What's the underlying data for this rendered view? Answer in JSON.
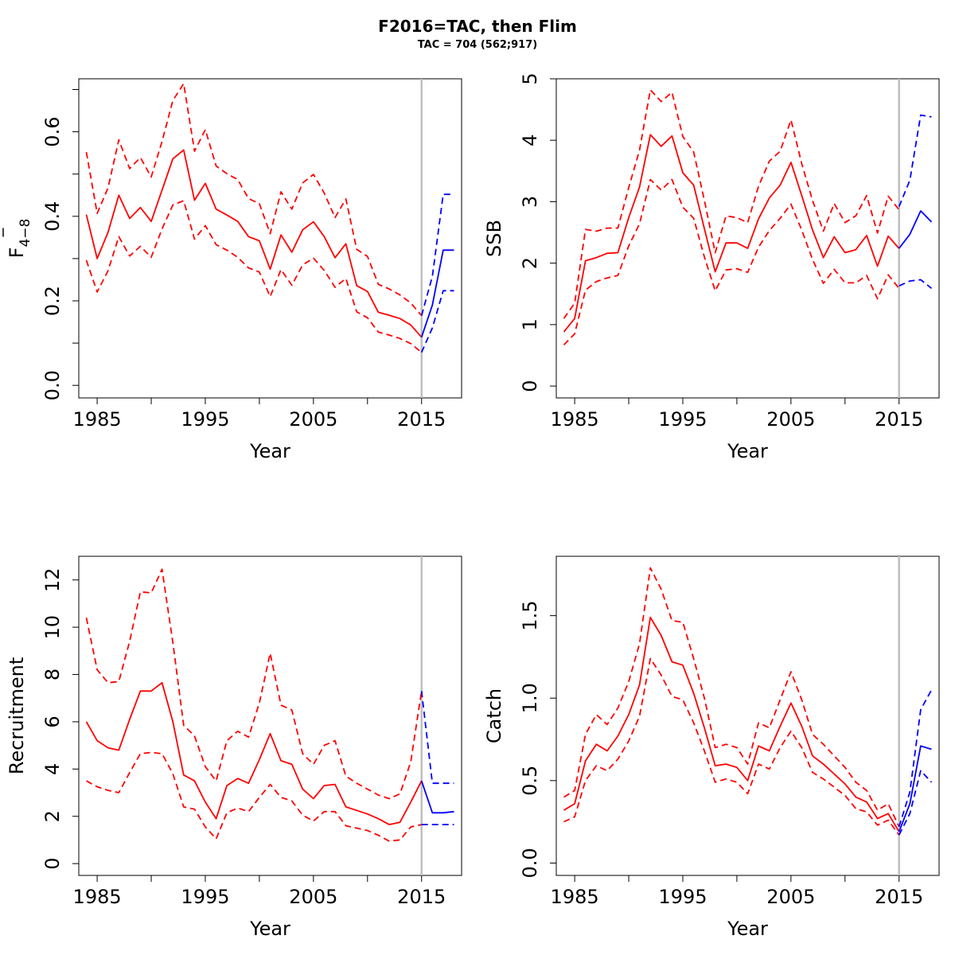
{
  "title": "F2016=TAC, then Flim",
  "subtitle": "TAC = 704 (562;917)",
  "colors": {
    "historic": "#ff0000",
    "forecast": "#0000ff",
    "divider": "#bebebe",
    "axis": "#000000"
  },
  "chart_data": [
    {
      "type": "line",
      "id": "fbar",
      "ylabel": "F",
      "ylabel_bar": "F",
      "ylabel_sub": "4−8",
      "xlabel": "Year",
      "xlim": [
        1983.3,
        2018.7
      ],
      "ylim": [
        -0.0297,
        0.7254
      ],
      "xticks": [
        1985,
        1995,
        2005,
        2015
      ],
      "xticks_minor": [
        1990,
        2000,
        2010
      ],
      "yticks": [
        0.0,
        0.2,
        0.4,
        0.6
      ],
      "yticks_minor": [
        0.1,
        0.3,
        0.5,
        0.7
      ],
      "divider_x": 2015,
      "historic": {
        "x": [
          1984,
          1985,
          1986,
          1987,
          1988,
          1989,
          1990,
          1991,
          1992,
          1993,
          1994,
          1995,
          1996,
          1997,
          1998,
          1999,
          2000,
          2001,
          2002,
          2003,
          2004,
          2005,
          2006,
          2007,
          2008,
          2009,
          2010,
          2011,
          2012,
          2013,
          2014,
          2015
        ],
        "mid": [
          0.404,
          0.3,
          0.362,
          0.45,
          0.395,
          0.421,
          0.388,
          0.462,
          0.536,
          0.557,
          0.438,
          0.478,
          0.417,
          0.403,
          0.388,
          0.352,
          0.342,
          0.275,
          0.356,
          0.315,
          0.368,
          0.387,
          0.352,
          0.302,
          0.335,
          0.236,
          0.222,
          0.173,
          0.166,
          0.158,
          0.143,
          0.114
        ],
        "upper": [
          0.552,
          0.407,
          0.467,
          0.581,
          0.513,
          0.539,
          0.493,
          0.577,
          0.674,
          0.714,
          0.554,
          0.605,
          0.519,
          0.501,
          0.487,
          0.442,
          0.43,
          0.359,
          0.458,
          0.417,
          0.479,
          0.499,
          0.455,
          0.397,
          0.441,
          0.322,
          0.305,
          0.239,
          0.228,
          0.214,
          0.195,
          0.165
        ],
        "lower": [
          0.296,
          0.221,
          0.271,
          0.352,
          0.306,
          0.329,
          0.303,
          0.37,
          0.427,
          0.437,
          0.346,
          0.378,
          0.333,
          0.32,
          0.303,
          0.278,
          0.268,
          0.21,
          0.274,
          0.237,
          0.285,
          0.301,
          0.272,
          0.232,
          0.253,
          0.174,
          0.16,
          0.126,
          0.119,
          0.111,
          0.099,
          0.078
        ]
      },
      "forecast": {
        "x": [
          2015,
          2016,
          2017,
          2018
        ],
        "mid": [
          0.114,
          0.19,
          0.32,
          0.32
        ],
        "upper": [
          0.165,
          0.258,
          0.452,
          0.452
        ],
        "lower": [
          0.078,
          0.136,
          0.224,
          0.224
        ]
      }
    },
    {
      "type": "line",
      "id": "ssb",
      "ylabel": "SSB",
      "xlabel": "Year",
      "xlim": [
        1983.3,
        2018.7
      ],
      "ylim": [
        -0.193,
        5.0
      ],
      "xticks": [
        1985,
        1995,
        2005,
        2015
      ],
      "xticks_minor": [
        1990,
        2000,
        2010
      ],
      "yticks": [
        0,
        1,
        2,
        3,
        4,
        5
      ],
      "yticks_minor": [],
      "divider_x": 2015,
      "historic": {
        "x": [
          1984,
          1985,
          1986,
          1987,
          1988,
          1989,
          1990,
          1991,
          1992,
          1993,
          1994,
          1995,
          1996,
          1997,
          1998,
          1999,
          2000,
          2001,
          2002,
          2003,
          2004,
          2005,
          2006,
          2007,
          2008,
          2009,
          2010,
          2011,
          2012,
          2013,
          2014,
          2015
        ],
        "mid": [
          0.88,
          1.1,
          2.04,
          2.09,
          2.16,
          2.17,
          2.74,
          3.24,
          4.09,
          3.9,
          4.07,
          3.47,
          3.27,
          2.56,
          1.86,
          2.33,
          2.33,
          2.24,
          2.72,
          3.06,
          3.27,
          3.64,
          3.1,
          2.54,
          2.09,
          2.43,
          2.17,
          2.22,
          2.45,
          1.95,
          2.44,
          2.24
        ],
        "upper": [
          1.1,
          1.35,
          2.55,
          2.52,
          2.57,
          2.57,
          3.23,
          3.84,
          4.82,
          4.63,
          4.78,
          4.06,
          3.81,
          3.02,
          2.17,
          2.77,
          2.74,
          2.66,
          3.25,
          3.66,
          3.82,
          4.33,
          3.62,
          3.02,
          2.52,
          2.97,
          2.66,
          2.77,
          3.1,
          2.49,
          3.09,
          2.87
        ],
        "lower": [
          0.67,
          0.85,
          1.56,
          1.7,
          1.76,
          1.8,
          2.28,
          2.64,
          3.36,
          3.19,
          3.36,
          2.91,
          2.73,
          2.1,
          1.55,
          1.89,
          1.91,
          1.85,
          2.26,
          2.53,
          2.73,
          2.96,
          2.54,
          2.06,
          1.67,
          1.9,
          1.68,
          1.68,
          1.8,
          1.42,
          1.81,
          1.59
        ]
      },
      "forecast": {
        "x": [
          2015,
          2016,
          2017,
          2018
        ],
        "mid": [
          2.24,
          2.47,
          2.85,
          2.67
        ],
        "upper": [
          2.92,
          3.35,
          4.41,
          4.38
        ],
        "lower": [
          1.63,
          1.71,
          1.73,
          1.59
        ]
      }
    },
    {
      "type": "line",
      "id": "recruitment",
      "ylabel": "Recruitment",
      "xlabel": "Year",
      "xlim": [
        1983.3,
        2018.7
      ],
      "ylim": [
        -0.5,
        13.0
      ],
      "xticks": [
        1985,
        1995,
        2005,
        2015
      ],
      "xticks_minor": [
        1990,
        2000,
        2010
      ],
      "yticks": [
        0,
        2,
        4,
        6,
        8,
        10,
        12
      ],
      "yticks_minor": [],
      "divider_x": 2015,
      "historic": {
        "x": [
          1984,
          1985,
          1986,
          1987,
          1988,
          1989,
          1990,
          1991,
          1992,
          1993,
          1994,
          1995,
          1996,
          1997,
          1998,
          1999,
          2000,
          2001,
          2002,
          2003,
          2004,
          2005,
          2006,
          2007,
          2008,
          2009,
          2010,
          2011,
          2012,
          2013,
          2014,
          2015
        ],
        "mid": [
          6.0,
          5.2,
          4.9,
          4.8,
          6.1,
          7.3,
          7.3,
          7.65,
          6.0,
          3.75,
          3.5,
          2.6,
          1.9,
          3.3,
          3.6,
          3.4,
          4.4,
          5.5,
          4.35,
          4.2,
          3.15,
          2.75,
          3.3,
          3.35,
          2.4,
          2.25,
          2.1,
          1.9,
          1.65,
          1.75,
          2.6,
          3.5
        ],
        "upper": [
          10.4,
          8.2,
          7.65,
          7.7,
          9.4,
          11.5,
          11.45,
          12.45,
          9.35,
          5.85,
          5.4,
          4.1,
          3.5,
          5.2,
          5.6,
          5.35,
          6.8,
          8.9,
          6.7,
          6.5,
          4.65,
          4.2,
          5.0,
          5.2,
          3.7,
          3.4,
          3.15,
          2.9,
          2.75,
          2.95,
          4.3,
          7.3
        ],
        "lower": [
          3.5,
          3.25,
          3.1,
          3.0,
          3.85,
          4.65,
          4.7,
          4.65,
          3.8,
          2.4,
          2.3,
          1.55,
          1.05,
          2.15,
          2.35,
          2.2,
          2.8,
          3.35,
          2.8,
          2.65,
          2.05,
          1.8,
          2.2,
          2.2,
          1.6,
          1.5,
          1.4,
          1.2,
          0.95,
          1.0,
          1.55,
          1.65
        ]
      },
      "forecast": {
        "x": [
          2015,
          2016,
          2017,
          2018
        ],
        "mid": [
          3.5,
          2.15,
          2.15,
          2.2
        ],
        "upper": [
          7.3,
          3.4,
          3.4,
          3.4
        ],
        "lower": [
          1.65,
          1.65,
          1.65,
          1.65
        ]
      }
    },
    {
      "type": "line",
      "id": "catch",
      "ylabel": "Catch",
      "xlabel": "Year",
      "xlim": [
        1983.3,
        2018.7
      ],
      "ylim": [
        -0.075,
        1.86
      ],
      "xticks": [
        1985,
        1995,
        2005,
        2015
      ],
      "xticks_minor": [
        1990,
        2000,
        2010
      ],
      "yticks": [
        0.0,
        0.5,
        1.0,
        1.5
      ],
      "yticks_minor": [],
      "divider_x": 2015,
      "historic": {
        "x": [
          1984,
          1985,
          1986,
          1987,
          1988,
          1989,
          1990,
          1991,
          1992,
          1993,
          1994,
          1995,
          1996,
          1997,
          1998,
          1999,
          2000,
          2001,
          2002,
          2003,
          2004,
          2005,
          2006,
          2007,
          2008,
          2009,
          2010,
          2011,
          2012,
          2013,
          2014,
          2015
        ],
        "mid": [
          0.32,
          0.36,
          0.62,
          0.72,
          0.68,
          0.77,
          0.9,
          1.08,
          1.49,
          1.38,
          1.22,
          1.2,
          1.03,
          0.82,
          0.59,
          0.6,
          0.58,
          0.5,
          0.71,
          0.68,
          0.83,
          0.97,
          0.83,
          0.65,
          0.6,
          0.54,
          0.48,
          0.4,
          0.37,
          0.27,
          0.3,
          0.19
        ],
        "upper": [
          0.4,
          0.44,
          0.78,
          0.9,
          0.84,
          0.94,
          1.1,
          1.33,
          1.79,
          1.66,
          1.47,
          1.46,
          1.24,
          1.0,
          0.7,
          0.72,
          0.7,
          0.6,
          0.85,
          0.82,
          0.99,
          1.16,
          0.99,
          0.78,
          0.72,
          0.65,
          0.58,
          0.49,
          0.44,
          0.32,
          0.36,
          0.22
        ],
        "lower": [
          0.25,
          0.28,
          0.5,
          0.59,
          0.56,
          0.63,
          0.74,
          0.89,
          1.24,
          1.14,
          1.01,
          0.99,
          0.85,
          0.68,
          0.49,
          0.51,
          0.49,
          0.42,
          0.6,
          0.57,
          0.7,
          0.8,
          0.7,
          0.55,
          0.51,
          0.46,
          0.41,
          0.33,
          0.31,
          0.23,
          0.26,
          0.17
        ]
      },
      "forecast": {
        "x": [
          2015,
          2016,
          2017,
          2018
        ],
        "mid": [
          0.19,
          0.36,
          0.71,
          0.69
        ],
        "upper": [
          0.22,
          0.43,
          0.93,
          1.05
        ],
        "lower": [
          0.17,
          0.3,
          0.56,
          0.49
        ]
      }
    }
  ]
}
